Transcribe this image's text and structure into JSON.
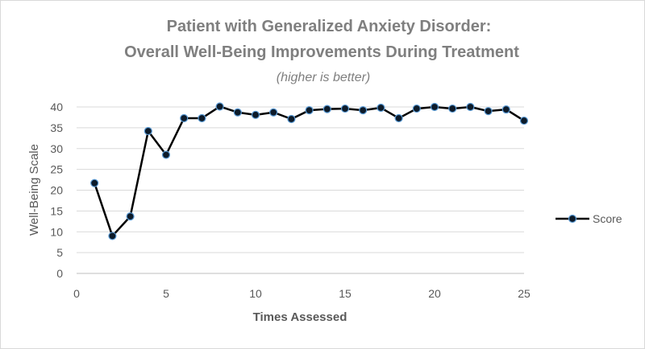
{
  "chart_data": {
    "type": "line",
    "title_line1": "Patient with Generalized Anxiety Disorder:",
    "title_line2": "Overall Well-Being Improvements During Treatment",
    "subtitle": "(higher is better)",
    "xlabel": "Times Assessed",
    "ylabel": "Well-Being Scale",
    "xlim": [
      0,
      25
    ],
    "ylim": [
      0,
      40
    ],
    "x_ticks": [
      0,
      5,
      10,
      15,
      20,
      25
    ],
    "y_ticks": [
      0,
      5,
      10,
      15,
      20,
      25,
      30,
      35,
      40
    ],
    "grid": "horizontal",
    "legend_position": "right",
    "series": [
      {
        "name": "Score",
        "color": "#000000",
        "marker_fill": "#0d1b2a",
        "marker_edge": "#5b9bd5",
        "x": [
          1,
          2,
          3,
          4,
          5,
          6,
          7,
          8,
          9,
          10,
          11,
          12,
          13,
          14,
          15,
          16,
          17,
          18,
          19,
          20,
          21,
          22,
          23,
          24,
          25
        ],
        "y": [
          21.7,
          9,
          13.7,
          34.2,
          28.5,
          37.3,
          37.3,
          40.1,
          38.7,
          38.1,
          38.7,
          37.1,
          39.2,
          39.5,
          39.6,
          39.2,
          39.8,
          37.3,
          39.6,
          40,
          39.6,
          40,
          39,
          39.4,
          36.7
        ]
      }
    ]
  }
}
